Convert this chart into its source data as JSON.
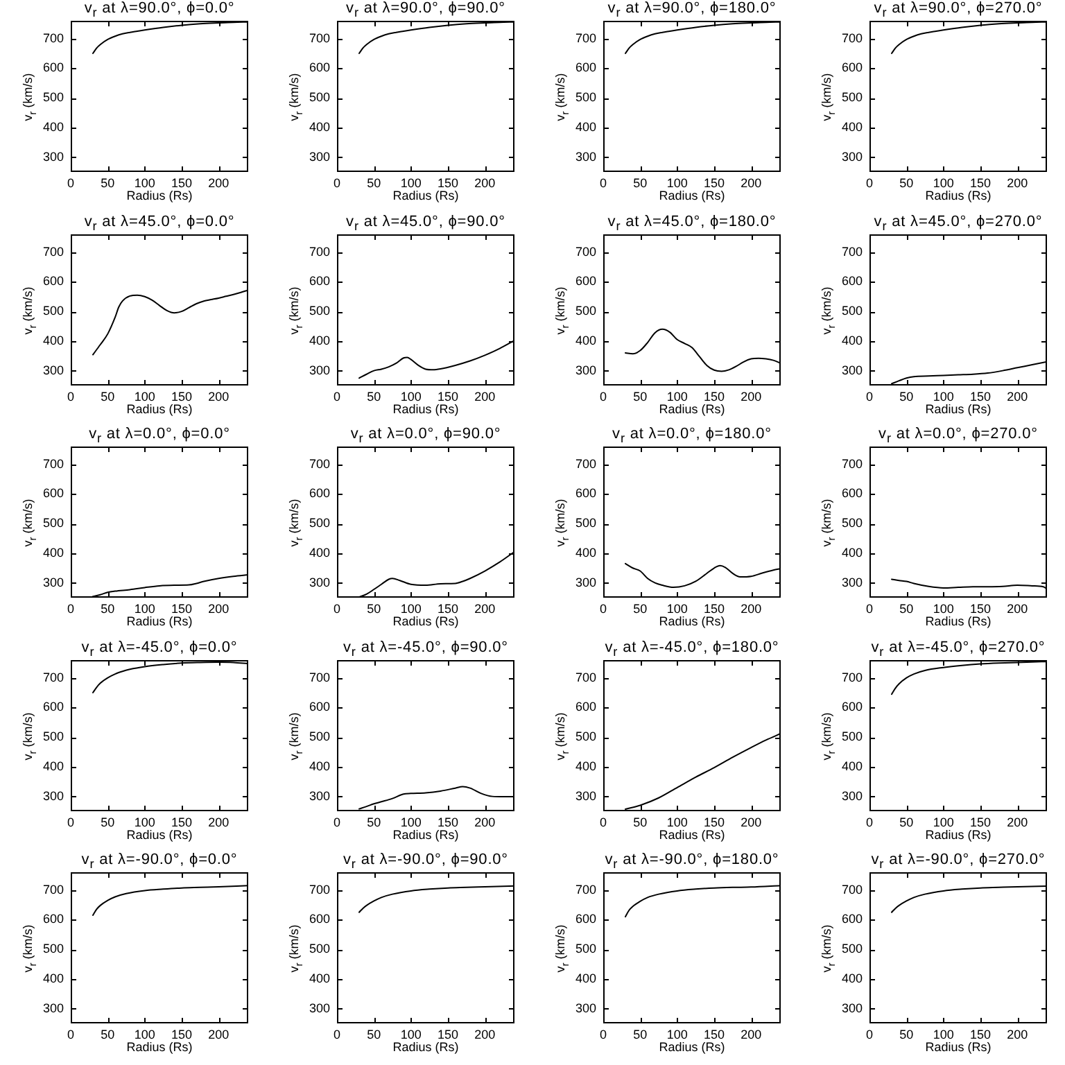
{
  "chart_data": [
    {
      "type": "line",
      "title": "v$_{r}$ at λ=90.0°, ϕ=0.0°",
      "xlabel": "Radius (Rs)",
      "ylabel": "v$_{r}$ (km/s)",
      "color": "#000000",
      "x": [
        30,
        35,
        40,
        50,
        60,
        70,
        80,
        90,
        100,
        125,
        150,
        175,
        200,
        220,
        240
      ],
      "values": [
        650,
        668,
        680,
        697,
        708,
        716,
        721,
        725,
        729,
        738,
        745,
        750,
        753,
        755,
        756
      ],
      "xlim": [
        0,
        240
      ],
      "ylim": [
        250,
        760
      ],
      "xticks": [
        0,
        50,
        100,
        150,
        200
      ],
      "yticks": [
        300,
        400,
        500,
        600,
        700
      ]
    },
    {
      "type": "line",
      "title": "v$_{r}$ at λ=90.0°, ϕ=90.0°",
      "xlabel": "Radius (Rs)",
      "ylabel": "v$_{r}$ (km/s)",
      "color": "#000000",
      "x": [
        30,
        35,
        40,
        50,
        60,
        70,
        80,
        90,
        100,
        125,
        150,
        175,
        200,
        220,
        240
      ],
      "values": [
        650,
        668,
        680,
        697,
        708,
        716,
        721,
        725,
        729,
        738,
        745,
        750,
        753,
        755,
        756
      ],
      "xlim": [
        0,
        240
      ],
      "ylim": [
        250,
        760
      ],
      "xticks": [
        0,
        50,
        100,
        150,
        200
      ],
      "yticks": [
        300,
        400,
        500,
        600,
        700
      ]
    },
    {
      "type": "line",
      "title": "v$_{r}$ at λ=90.0°, ϕ=180.0°",
      "xlabel": "Radius (Rs)",
      "ylabel": "v$_{r}$ (km/s)",
      "color": "#000000",
      "x": [
        30,
        35,
        40,
        50,
        60,
        70,
        80,
        90,
        100,
        125,
        150,
        175,
        200,
        220,
        240
      ],
      "values": [
        650,
        668,
        680,
        697,
        708,
        716,
        721,
        725,
        729,
        738,
        745,
        750,
        753,
        755,
        756
      ],
      "xlim": [
        0,
        240
      ],
      "ylim": [
        250,
        760
      ],
      "xticks": [
        0,
        50,
        100,
        150,
        200
      ],
      "yticks": [
        300,
        400,
        500,
        600,
        700
      ]
    },
    {
      "type": "line",
      "title": "v$_{r}$ at λ=90.0°, ϕ=270.0°",
      "xlabel": "Radius (Rs)",
      "ylabel": "v$_{r}$ (km/s)",
      "color": "#000000",
      "x": [
        30,
        35,
        40,
        50,
        60,
        70,
        80,
        90,
        100,
        125,
        150,
        175,
        200,
        220,
        240
      ],
      "values": [
        650,
        668,
        680,
        697,
        708,
        716,
        721,
        725,
        729,
        738,
        745,
        750,
        753,
        755,
        756
      ],
      "xlim": [
        0,
        240
      ],
      "ylim": [
        250,
        760
      ],
      "xticks": [
        0,
        50,
        100,
        150,
        200
      ],
      "yticks": [
        300,
        400,
        500,
        600,
        700
      ]
    },
    {
      "type": "line",
      "title": "v$_{r}$ at λ=45.0°, ϕ=0.0°",
      "xlabel": "Radius (Rs)",
      "ylabel": "v$_{r}$ (km/s)",
      "color": "#000000",
      "x": [
        30,
        40,
        50,
        60,
        65,
        70,
        80,
        90,
        100,
        110,
        120,
        130,
        140,
        150,
        160,
        170,
        180,
        190,
        200,
        210,
        220,
        230,
        240
      ],
      "values": [
        354,
        388,
        424,
        480,
        515,
        535,
        552,
        555,
        550,
        538,
        520,
        503,
        495,
        500,
        513,
        526,
        535,
        540,
        545,
        551,
        557,
        564,
        572
      ],
      "xlim": [
        0,
        240
      ],
      "ylim": [
        250,
        760
      ],
      "xticks": [
        0,
        50,
        100,
        150,
        200
      ],
      "yticks": [
        300,
        400,
        500,
        600,
        700
      ]
    },
    {
      "type": "line",
      "title": "v$_{r}$ at λ=45.0°, ϕ=90.0°",
      "xlabel": "Radius (Rs)",
      "ylabel": "v$_{r}$ (km/s)",
      "color": "#000000",
      "x": [
        30,
        40,
        50,
        60,
        70,
        80,
        90,
        95,
        100,
        110,
        120,
        130,
        140,
        160,
        180,
        200,
        220,
        240
      ],
      "values": [
        275,
        288,
        300,
        305,
        313,
        325,
        343,
        345,
        338,
        318,
        305,
        303,
        306,
        318,
        333,
        352,
        375,
        402
      ],
      "xlim": [
        0,
        240
      ],
      "ylim": [
        250,
        760
      ],
      "xticks": [
        0,
        50,
        100,
        150,
        200
      ],
      "yticks": [
        300,
        400,
        500,
        600,
        700
      ]
    },
    {
      "type": "line",
      "title": "v$_{r}$ at λ=45.0°, ϕ=180.0°",
      "xlabel": "Radius (Rs)",
      "ylabel": "v$_{r}$ (km/s)",
      "color": "#000000",
      "x": [
        30,
        40,
        50,
        60,
        70,
        80,
        90,
        100,
        110,
        120,
        130,
        140,
        150,
        160,
        170,
        180,
        190,
        200,
        210,
        220,
        230,
        240
      ],
      "values": [
        360,
        357,
        368,
        395,
        428,
        440,
        430,
        405,
        392,
        378,
        348,
        318,
        302,
        298,
        303,
        315,
        330,
        340,
        342,
        340,
        335,
        325
      ],
      "xlim": [
        0,
        240
      ],
      "ylim": [
        250,
        760
      ],
      "xticks": [
        0,
        50,
        100,
        150,
        200
      ],
      "yticks": [
        300,
        400,
        500,
        600,
        700
      ]
    },
    {
      "type": "line",
      "title": "v$_{r}$ at λ=45.0°, ϕ=270.0°",
      "xlabel": "Radius (Rs)",
      "ylabel": "v$_{r}$ (km/s)",
      "color": "#000000",
      "x": [
        30,
        40,
        50,
        60,
        80,
        100,
        120,
        140,
        160,
        180,
        200,
        220,
        240
      ],
      "values": [
        256,
        266,
        275,
        280,
        282,
        284,
        286,
        288,
        292,
        300,
        310,
        320,
        330
      ],
      "xlim": [
        0,
        240
      ],
      "ylim": [
        250,
        760
      ],
      "xticks": [
        0,
        50,
        100,
        150,
        200
      ],
      "yticks": [
        300,
        400,
        500,
        600,
        700
      ]
    },
    {
      "type": "line",
      "title": "v$_{r}$ at λ=0.0°, ϕ=0.0°",
      "xlabel": "Radius (Rs)",
      "ylabel": "v$_{r}$ (km/s)",
      "color": "#000000",
      "x": [
        30,
        40,
        50,
        60,
        80,
        100,
        120,
        140,
        160,
        170,
        180,
        200,
        220,
        240
      ],
      "values": [
        254,
        260,
        268,
        272,
        277,
        284,
        290,
        292,
        293,
        298,
        305,
        315,
        322,
        327
      ],
      "xlim": [
        0,
        240
      ],
      "ylim": [
        250,
        760
      ],
      "xticks": [
        0,
        50,
        100,
        150,
        200
      ],
      "yticks": [
        300,
        400,
        500,
        600,
        700
      ]
    },
    {
      "type": "line",
      "title": "v$_{r}$ at λ=0.0°, ϕ=90.0°",
      "xlabel": "Radius (Rs)",
      "ylabel": "v$_{r}$ (km/s)",
      "color": "#000000",
      "x": [
        30,
        40,
        50,
        60,
        70,
        75,
        85,
        100,
        120,
        140,
        160,
        170,
        180,
        200,
        220,
        240
      ],
      "values": [
        252,
        262,
        278,
        295,
        312,
        315,
        308,
        295,
        292,
        297,
        298,
        305,
        315,
        340,
        370,
        405
      ],
      "xlim": [
        0,
        240
      ],
      "ylim": [
        250,
        760
      ],
      "xticks": [
        0,
        50,
        100,
        150,
        200
      ],
      "yticks": [
        300,
        400,
        500,
        600,
        700
      ]
    },
    {
      "type": "line",
      "title": "v$_{r}$ at λ=0.0°, ϕ=180.0°",
      "xlabel": "Radius (Rs)",
      "ylabel": "v$_{r}$ (km/s)",
      "color": "#000000",
      "x": [
        30,
        40,
        50,
        60,
        70,
        80,
        95,
        110,
        125,
        140,
        150,
        158,
        165,
        175,
        185,
        200,
        215,
        230,
        240
      ],
      "values": [
        365,
        350,
        340,
        315,
        300,
        292,
        285,
        290,
        305,
        332,
        350,
        358,
        352,
        332,
        320,
        322,
        333,
        343,
        348
      ],
      "xlim": [
        0,
        240
      ],
      "ylim": [
        250,
        760
      ],
      "xticks": [
        0,
        50,
        100,
        150,
        200
      ],
      "yticks": [
        300,
        400,
        500,
        600,
        700
      ]
    },
    {
      "type": "line",
      "title": "v$_{r}$ at λ=0.0°, ϕ=270.0°",
      "xlabel": "Radius (Rs)",
      "ylabel": "v$_{r}$ (km/s)",
      "color": "#000000",
      "x": [
        30,
        40,
        50,
        60,
        80,
        100,
        120,
        140,
        160,
        180,
        200,
        220,
        235,
        240
      ],
      "values": [
        312,
        308,
        305,
        298,
        288,
        283,
        285,
        287,
        287,
        288,
        292,
        290,
        287,
        280
      ],
      "xlim": [
        0,
        240
      ],
      "ylim": [
        250,
        760
      ],
      "xticks": [
        0,
        50,
        100,
        150,
        200
      ],
      "yticks": [
        300,
        400,
        500,
        600,
        700
      ]
    },
    {
      "type": "line",
      "title": "v$_{r}$ at λ=-45.0°, ϕ=0.0°",
      "xlabel": "Radius (Rs)",
      "ylabel": "v$_{r}$ (km/s)",
      "color": "#000000",
      "x": [
        30,
        35,
        40,
        50,
        60,
        70,
        80,
        100,
        125,
        150,
        175,
        200,
        220,
        240
      ],
      "values": [
        650,
        668,
        682,
        700,
        713,
        722,
        729,
        738,
        745,
        750,
        752,
        753,
        752,
        748
      ],
      "xlim": [
        0,
        240
      ],
      "ylim": [
        250,
        760
      ],
      "xticks": [
        0,
        50,
        100,
        150,
        200
      ],
      "yticks": [
        300,
        400,
        500,
        600,
        700
      ]
    },
    {
      "type": "line",
      "title": "v$_{r}$ at λ=-45.0°, ϕ=90.0°",
      "xlabel": "Radius (Rs)",
      "ylabel": "v$_{r}$ (km/s)",
      "color": "#000000",
      "x": [
        30,
        40,
        50,
        60,
        75,
        90,
        100,
        120,
        140,
        160,
        170,
        180,
        195,
        210,
        225,
        240
      ],
      "values": [
        258,
        266,
        275,
        282,
        293,
        308,
        310,
        312,
        318,
        328,
        333,
        328,
        310,
        300,
        299,
        299
      ],
      "xlim": [
        0,
        240
      ],
      "ylim": [
        250,
        760
      ],
      "xticks": [
        0,
        50,
        100,
        150,
        200
      ],
      "yticks": [
        300,
        400,
        500,
        600,
        700
      ]
    },
    {
      "type": "line",
      "title": "v$_{r}$ at λ=-45.0°, ϕ=180.0°",
      "xlabel": "Radius (Rs)",
      "ylabel": "v$_{r}$ (km/s)",
      "color": "#000000",
      "x": [
        30,
        50,
        75,
        100,
        125,
        150,
        175,
        200,
        220,
        240
      ],
      "values": [
        257,
        270,
        295,
        330,
        365,
        397,
        432,
        465,
        490,
        512
      ],
      "xlim": [
        0,
        240
      ],
      "ylim": [
        250,
        760
      ],
      "xticks": [
        0,
        50,
        100,
        150,
        200
      ],
      "yticks": [
        300,
        400,
        500,
        600,
        700
      ]
    },
    {
      "type": "line",
      "title": "v$_{r}$ at λ=-45.0°, ϕ=270.0°",
      "xlabel": "Radius (Rs)",
      "ylabel": "v$_{r}$ (km/s)",
      "color": "#000000",
      "x": [
        30,
        35,
        40,
        50,
        60,
        75,
        100,
        125,
        150,
        175,
        200,
        240
      ],
      "values": [
        645,
        665,
        680,
        700,
        713,
        725,
        735,
        742,
        747,
        750,
        752,
        755
      ],
      "xlim": [
        0,
        240
      ],
      "ylim": [
        250,
        760
      ],
      "xticks": [
        0,
        50,
        100,
        150,
        200
      ],
      "yticks": [
        300,
        400,
        500,
        600,
        700
      ]
    },
    {
      "type": "line",
      "title": "v$_{r}$ at λ=-90.0°, ϕ=0.0°",
      "xlabel": "Radius (Rs)",
      "ylabel": "v$_{r}$ (km/s)",
      "color": "#000000",
      "x": [
        30,
        35,
        40,
        50,
        60,
        75,
        100,
        125,
        150,
        175,
        200,
        240
      ],
      "values": [
        615,
        635,
        648,
        665,
        677,
        688,
        698,
        703,
        707,
        709,
        711,
        715
      ],
      "xlim": [
        0,
        240
      ],
      "ylim": [
        250,
        760
      ],
      "xticks": [
        0,
        50,
        100,
        150,
        200
      ],
      "yticks": [
        300,
        400,
        500,
        600,
        700
      ]
    },
    {
      "type": "line",
      "title": "v$_{r}$ at λ=-90.0°, ϕ=90.0°",
      "xlabel": "Radius (Rs)",
      "ylabel": "v$_{r}$ (km/s)",
      "color": "#000000",
      "x": [
        30,
        35,
        40,
        50,
        60,
        75,
        100,
        125,
        150,
        175,
        200,
        240
      ],
      "values": [
        625,
        638,
        648,
        663,
        675,
        686,
        697,
        703,
        707,
        709,
        711,
        714
      ],
      "xlim": [
        0,
        240
      ],
      "ylim": [
        250,
        760
      ],
      "xticks": [
        0,
        50,
        100,
        150,
        200
      ],
      "yticks": [
        300,
        400,
        500,
        600,
        700
      ]
    },
    {
      "type": "line",
      "title": "v$_{r}$ at λ=-90.0°, ϕ=180.0°",
      "xlabel": "Radius (Rs)",
      "ylabel": "v$_{r}$ (km/s)",
      "color": "#000000",
      "x": [
        30,
        35,
        40,
        50,
        60,
        75,
        100,
        125,
        150,
        175,
        200,
        240
      ],
      "values": [
        610,
        632,
        645,
        662,
        675,
        686,
        697,
        703,
        707,
        709,
        710,
        715
      ],
      "xlim": [
        0,
        240
      ],
      "ylim": [
        250,
        760
      ],
      "xticks": [
        0,
        50,
        100,
        150,
        200
      ],
      "yticks": [
        300,
        400,
        500,
        600,
        700
      ]
    },
    {
      "type": "line",
      "title": "v$_{r}$ at λ=-90.0°, ϕ=270.0°",
      "xlabel": "Radius (Rs)",
      "ylabel": "v$_{r}$ (km/s)",
      "color": "#000000",
      "x": [
        30,
        35,
        40,
        50,
        60,
        75,
        100,
        125,
        150,
        175,
        200,
        240
      ],
      "values": [
        625,
        638,
        648,
        663,
        675,
        686,
        697,
        703,
        707,
        709,
        711,
        713
      ],
      "xlim": [
        0,
        240
      ],
      "ylim": [
        250,
        760
      ],
      "xticks": [
        0,
        50,
        100,
        150,
        200
      ],
      "yticks": [
        300,
        400,
        500,
        600,
        700
      ]
    }
  ]
}
